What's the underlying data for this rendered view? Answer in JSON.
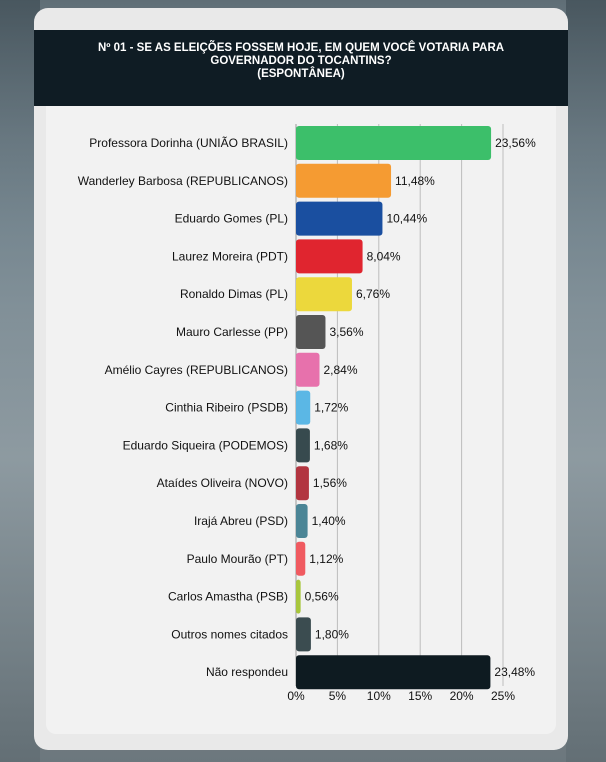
{
  "header": {
    "line1": "Nº 01 - SE AS ELEIÇÕES FOSSEM HOJE, EM QUEM VOCÊ VOTARIA PARA",
    "line2": "GOVERNADOR DO TOCANTINS?",
    "line3": "(ESPONTÂNEA)"
  },
  "chart_data": {
    "type": "bar",
    "orientation": "horizontal",
    "title": "Nº 01 - SE AS ELEIÇÕES FOSSEM HOJE, EM QUEM VOCÊ VOTARIA PARA GOVERNADOR DO TOCANTINS? (ESPONTÂNEA)",
    "categories": [
      "Professora Dorinha (UNIÃO BRASIL)",
      "Wanderley Barbosa (REPUBLICANOS)",
      "Eduardo Gomes (PL)",
      "Laurez Moreira (PDT)",
      "Ronaldo Dimas (PL)",
      "Mauro Carlesse (PP)",
      "Amélio Cayres (REPUBLICANOS)",
      "Cinthia Ribeiro (PSDB)",
      "Eduardo Siqueira (PODEMOS)",
      "Ataídes Oliveira (NOVO)",
      "Irajá Abreu (PSD)",
      "Paulo Mourão (PT)",
      "Carlos Amastha (PSB)",
      "Outros nomes citados",
      "Não respondeu"
    ],
    "values": [
      23.56,
      11.48,
      10.44,
      8.04,
      6.76,
      3.56,
      2.84,
      1.72,
      1.68,
      1.56,
      1.4,
      1.12,
      0.56,
      1.8,
      23.48
    ],
    "value_labels": [
      "23,56%",
      "11,48%",
      "10,44%",
      "8,04%",
      "6,76%",
      "3,56%",
      "2,84%",
      "1,72%",
      "1,68%",
      "1,56%",
      "1,40%",
      "1,12%",
      "0,56%",
      "1,80%",
      "23,48%"
    ],
    "colors": [
      "#3cbf6a",
      "#f59b32",
      "#1a4fa0",
      "#e0252f",
      "#ecd83c",
      "#555555",
      "#e771ac",
      "#5bb7e5",
      "#374a4e",
      "#b23540",
      "#4b8596",
      "#f05a60",
      "#a8c63c",
      "#3b4c50",
      "#0e1b21"
    ],
    "xlim": [
      0,
      25
    ],
    "xticks": [
      0,
      5,
      10,
      15,
      20,
      25
    ],
    "xtick_labels": [
      "0%",
      "5%",
      "10%",
      "15%",
      "20%",
      "25%"
    ],
    "grid": true,
    "xlabel": "",
    "ylabel": ""
  }
}
